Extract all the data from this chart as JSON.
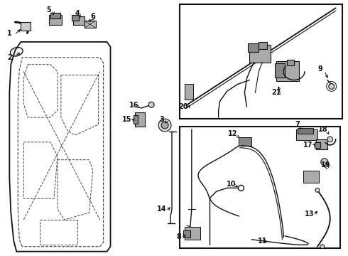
{
  "bg_color": "#ffffff",
  "fig_width": 4.9,
  "fig_height": 3.6,
  "dpi": 100,
  "line_color": "#111111",
  "dashed_color": "#444444"
}
